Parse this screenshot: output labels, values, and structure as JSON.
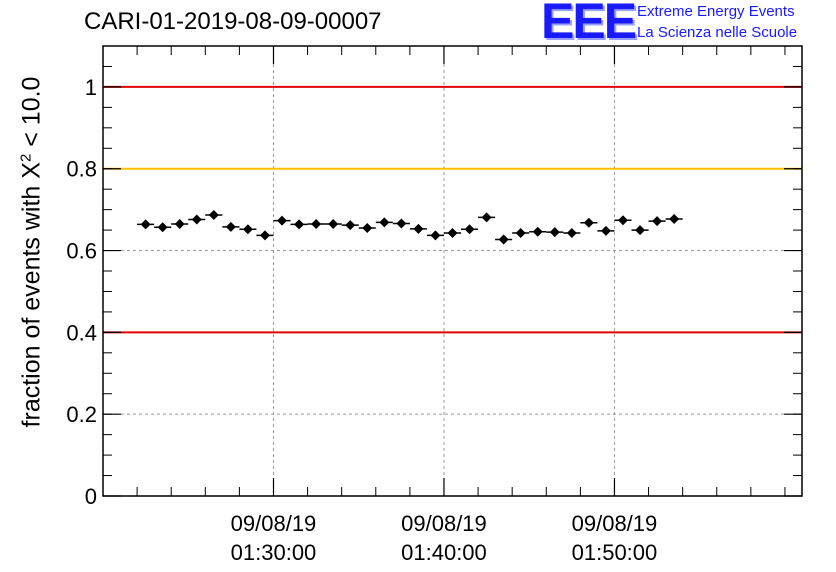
{
  "header": {
    "run_title": "CARI-01-2019-08-09-00007",
    "logo_mark": "EEE",
    "logo_line1": "Extreme Energy Events",
    "logo_line2": "La Scienza nelle Scuole"
  },
  "colors": {
    "red_line": "#e00000",
    "orange_line": "#ffc000",
    "marker": "#000000",
    "grid": "#9a9a9a",
    "logo_blue": "#1a1aff"
  },
  "chart_data": {
    "type": "scatter",
    "title": "CARI-01-2019-08-09-00007",
    "ylabel_prefix": "fraction of events with X",
    "ylabel_sup": "2",
    "ylabel_suffix": " < 10.0",
    "ylim": [
      0,
      1.1
    ],
    "y_ticks": [
      0,
      0.2,
      0.4,
      0.6,
      0.8,
      1
    ],
    "y_tick_labels": [
      "0",
      "0.2",
      "0.4",
      "0.6",
      "0.8",
      "1"
    ],
    "grid": true,
    "x_unit": "minutes",
    "xlim": [
      1260.0,
      1301.0
    ],
    "x_major_ticks": [
      {
        "value": 1270,
        "date": "09/08/19",
        "time": "01:30:00"
      },
      {
        "value": 1280,
        "date": "09/08/19",
        "time": "01:40:00"
      },
      {
        "value": 1290,
        "date": "09/08/19",
        "time": "01:50:00"
      }
    ],
    "reference_lines": [
      {
        "y": 1.0,
        "color": "#e00000"
      },
      {
        "y": 0.8,
        "color": "#ffc000"
      },
      {
        "y": 0.4,
        "color": "#e00000"
      }
    ],
    "bin_width": 1.0,
    "x": [
      1262.5,
      1263.5,
      1264.5,
      1265.5,
      1266.5,
      1267.5,
      1268.5,
      1269.5,
      1270.5,
      1271.5,
      1272.5,
      1273.5,
      1274.5,
      1275.5,
      1276.5,
      1277.5,
      1278.5,
      1279.5,
      1280.5,
      1281.5,
      1282.5,
      1283.5,
      1284.5,
      1285.5,
      1286.5,
      1287.5,
      1288.5,
      1289.5,
      1290.5,
      1291.5,
      1292.5,
      1293.5
    ],
    "values": [
      0.664,
      0.657,
      0.665,
      0.676,
      0.687,
      0.658,
      0.652,
      0.637,
      0.673,
      0.664,
      0.665,
      0.665,
      0.662,
      0.655,
      0.669,
      0.666,
      0.653,
      0.637,
      0.643,
      0.652,
      0.681,
      0.627,
      0.643,
      0.646,
      0.645,
      0.643,
      0.668,
      0.648,
      0.674,
      0.65,
      0.672,
      0.677
    ],
    "errors": [
      0.008,
      0.008,
      0.008,
      0.008,
      0.008,
      0.008,
      0.008,
      0.008,
      0.008,
      0.008,
      0.008,
      0.008,
      0.008,
      0.008,
      0.008,
      0.008,
      0.008,
      0.008,
      0.008,
      0.008,
      0.008,
      0.008,
      0.008,
      0.008,
      0.008,
      0.008,
      0.008,
      0.008,
      0.008,
      0.008,
      0.008,
      0.008
    ]
  }
}
